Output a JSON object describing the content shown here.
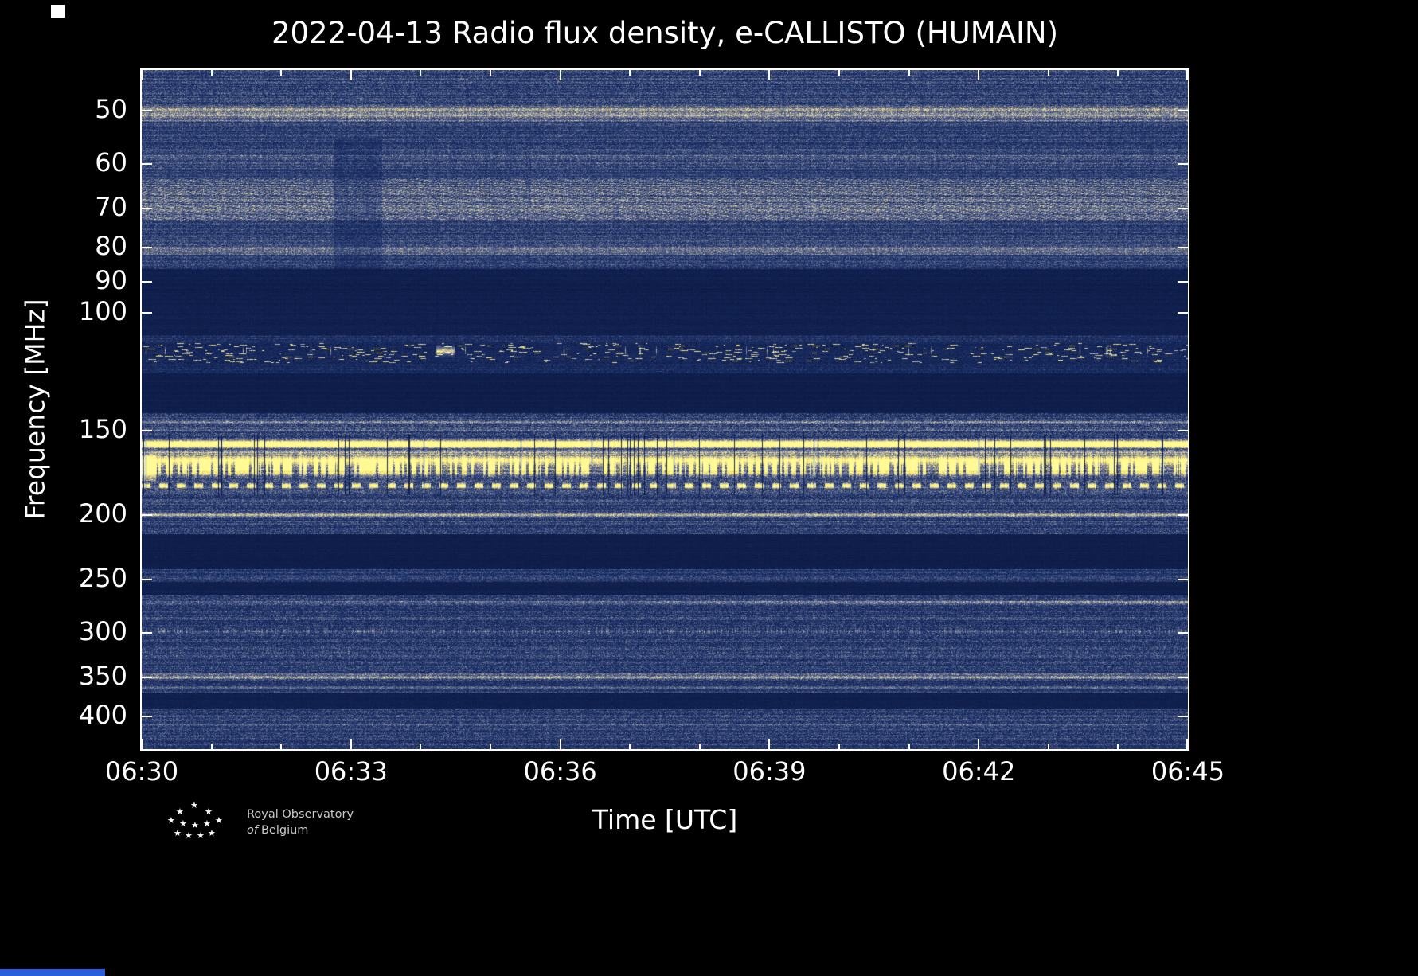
{
  "page": {
    "background": "#000000"
  },
  "chart_data": {
    "type": "heatmap",
    "title": "2022-04-13 Radio flux density, e-CALLISTO (HUMAIN)",
    "date": "2022-04-13",
    "instrument": "e-CALLISTO",
    "station": "HUMAIN",
    "xlabel": "Time [UTC]",
    "ylabel": "Frequency [MHz]",
    "x_range": [
      "06:30",
      "06:45"
    ],
    "x_major_ticks": [
      "06:30",
      "06:33",
      "06:36",
      "06:39",
      "06:42",
      "06:45"
    ],
    "x_minor_tick_interval_min": 1,
    "y_scale": "log",
    "y_axis_inverted": true,
    "y_range_mhz": [
      43.5,
      447
    ],
    "y_major_ticks": [
      50,
      60,
      70,
      80,
      90,
      100,
      150,
      200,
      250,
      300,
      350,
      400
    ],
    "colormap": [
      [
        0.0,
        [
          8,
          20,
          60
        ]
      ],
      [
        0.3,
        [
          30,
          50,
          105
        ]
      ],
      [
        0.5,
        [
          92,
          105,
          142
        ]
      ],
      [
        0.65,
        [
          165,
          162,
          158
        ]
      ],
      [
        0.75,
        [
          218,
          208,
          168
        ]
      ],
      [
        0.85,
        [
          252,
          232,
          88
        ]
      ],
      [
        1.0,
        [
          255,
          250,
          150
        ]
      ]
    ],
    "bands": [
      {
        "f1": 43.5,
        "f2": 49,
        "base": 0.3,
        "noise": 0.2
      },
      {
        "f1": 49,
        "f2": 52,
        "base": 0.42,
        "noise": 0.22
      },
      {
        "f1": 52,
        "f2": 58,
        "base": 0.3,
        "noise": 0.18
      },
      {
        "f1": 58,
        "f2": 61,
        "base": 0.37,
        "noise": 0.2
      },
      {
        "f1": 61,
        "f2": 63,
        "base": 0.28,
        "noise": 0.16
      },
      {
        "f1": 63,
        "f2": 73,
        "base": 0.4,
        "noise": 0.22,
        "wavy": true
      },
      {
        "f1": 73,
        "f2": 79,
        "base": 0.3,
        "noise": 0.18
      },
      {
        "f1": 79,
        "f2": 82,
        "base": 0.38,
        "noise": 0.2
      },
      {
        "f1": 82,
        "f2": 86,
        "base": 0.29,
        "noise": 0.18
      },
      {
        "f1": 86,
        "f2": 108,
        "base": 0.1,
        "noise": 0.06
      },
      {
        "f1": 108,
        "f2": 111,
        "base": 0.22,
        "noise": 0.16
      },
      {
        "f1": 111,
        "f2": 119,
        "base": 0.16,
        "noise": 0.13,
        "speckle": 0.015
      },
      {
        "f1": 119,
        "f2": 123,
        "base": 0.2,
        "noise": 0.15
      },
      {
        "f1": 123,
        "f2": 141,
        "base": 0.09,
        "noise": 0.05
      },
      {
        "f1": 141,
        "f2": 153,
        "base": 0.31,
        "noise": 0.22
      },
      {
        "f1": 153,
        "f2": 185,
        "base": 0.33,
        "noise": 0.22
      },
      {
        "f1": 185,
        "f2": 214,
        "base": 0.3,
        "noise": 0.2
      },
      {
        "f1": 214,
        "f2": 241,
        "base": 0.09,
        "noise": 0.05
      },
      {
        "f1": 241,
        "f2": 252,
        "base": 0.27,
        "noise": 0.17
      },
      {
        "f1": 252,
        "f2": 264,
        "base": 0.1,
        "noise": 0.06
      },
      {
        "f1": 264,
        "f2": 345,
        "base": 0.28,
        "noise": 0.2
      },
      {
        "f1": 345,
        "f2": 353,
        "base": 0.36,
        "noise": 0.22
      },
      {
        "f1": 353,
        "f2": 368,
        "base": 0.28,
        "noise": 0.18
      },
      {
        "f1": 368,
        "f2": 390,
        "base": 0.1,
        "noise": 0.06
      },
      {
        "f1": 390,
        "f2": 447,
        "base": 0.28,
        "noise": 0.2
      }
    ],
    "lines": [
      {
        "f": 50.5,
        "w": 0.6,
        "i": 0.15,
        "type": "soft"
      },
      {
        "f": 80.5,
        "w": 0.5,
        "i": 0.12,
        "type": "soft"
      },
      {
        "f": 114,
        "w": 1.2,
        "i": 0.55,
        "type": "blob"
      },
      {
        "f": 145.5,
        "w": 0.6,
        "i": 0.18,
        "type": "soft"
      },
      {
        "f": 149.5,
        "w": 0.5,
        "i": 0.14,
        "type": "soft"
      },
      {
        "f": 157,
        "w": 1.2,
        "i": 0.85,
        "type": "solid"
      },
      {
        "f": 161.5,
        "w": 0.8,
        "i": 0.3,
        "type": "soft"
      },
      {
        "f": 166,
        "w": 1.6,
        "i": 0.45,
        "type": "soft"
      },
      {
        "f": 170,
        "w": 3.2,
        "i": 0.75,
        "type": "burst"
      },
      {
        "f": 181,
        "w": 0.9,
        "i": 0.8,
        "type": "dash"
      },
      {
        "f": 200,
        "w": 1.2,
        "i": 0.28,
        "type": "soft"
      },
      {
        "f": 248,
        "w": 0.8,
        "i": 0.1,
        "type": "soft"
      },
      {
        "f": 270,
        "w": 1.0,
        "i": 0.3,
        "type": "grow"
      },
      {
        "f": 298,
        "w": 2.0,
        "i": 0.22,
        "type": "speckline"
      },
      {
        "f": 320,
        "w": 1.5,
        "i": 0.12,
        "type": "speckline"
      },
      {
        "f": 350,
        "w": 1.0,
        "i": 0.2,
        "type": "soft"
      },
      {
        "f": 362,
        "w": 0.8,
        "i": 0.12,
        "type": "soft"
      },
      {
        "f": 412,
        "w": 1.2,
        "i": 0.12,
        "type": "soft"
      }
    ]
  },
  "footer": {
    "logo_line1": "Royal Observatory",
    "logo_line2_italic": "of",
    "logo_line2_rest": "Belgium",
    "star_glyph": "★"
  }
}
